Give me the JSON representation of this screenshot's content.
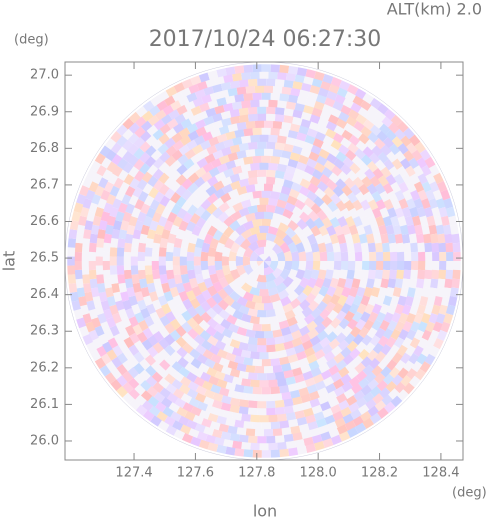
{
  "chart_data": {
    "type": "ppi",
    "title": "2017/10/24 06:27:30",
    "annotation": "ALT(km) 2.0",
    "x_label": "lon",
    "y_label": "lat",
    "x_unit": "(deg)",
    "y_unit": "(deg)",
    "xlim": [
      127.175,
      128.472
    ],
    "ylim": [
      25.948,
      27.036
    ],
    "xticks": [
      127.4,
      127.6,
      127.8,
      {
        "value": 128,
        "label": "128.0"
      },
      128.2,
      128.4
    ],
    "yticks": [
      {
        "value": 26,
        "label": "26.0"
      },
      26.1,
      26.2,
      26.3,
      26.4,
      26.5,
      26.6,
      26.7,
      26.8,
      26.9,
      {
        "value": 27,
        "label": "27.0"
      }
    ]
  }
}
